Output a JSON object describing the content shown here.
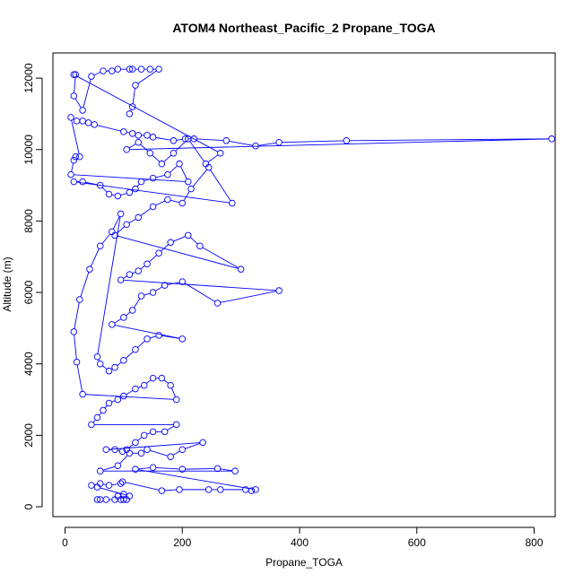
{
  "chart_data": {
    "type": "scatter",
    "title": "ATOM4 Northeast_Pacific_2 Propane_TOGA",
    "xlabel": "Propane_TOGA",
    "ylabel": "Altitude (m)",
    "xlim": [
      0,
      840
    ],
    "ylim": [
      0,
      12500
    ],
    "xticks": [
      0,
      200,
      400,
      600,
      800
    ],
    "yticks": [
      0,
      2000,
      4000,
      6000,
      8000,
      10000,
      12000
    ],
    "grid": false,
    "legend": "none",
    "series": [
      {
        "color": "#0000ff",
        "marker": "open-circle",
        "connected": true,
        "points": [
          [
            55,
            200
          ],
          [
            60,
            200
          ],
          [
            70,
            200
          ],
          [
            85,
            200
          ],
          [
            95,
            200
          ],
          [
            100,
            200
          ],
          [
            105,
            200
          ],
          [
            90,
            300
          ],
          [
            100,
            350
          ],
          [
            110,
            300
          ],
          [
            55,
            550
          ],
          [
            45,
            600
          ],
          [
            60,
            650
          ],
          [
            75,
            600
          ],
          [
            95,
            650
          ],
          [
            98,
            700
          ],
          [
            165,
            450
          ],
          [
            195,
            480
          ],
          [
            245,
            480
          ],
          [
            265,
            480
          ],
          [
            308,
            480
          ],
          [
            318,
            450
          ],
          [
            325,
            480
          ],
          [
            120,
            1050
          ],
          [
            150,
            1100
          ],
          [
            200,
            1050
          ],
          [
            260,
            1070
          ],
          [
            290,
            1000
          ],
          [
            60,
            1000
          ],
          [
            90,
            1150
          ],
          [
            110,
            1500
          ],
          [
            130,
            1500
          ],
          [
            140,
            1600
          ],
          [
            180,
            1400
          ],
          [
            200,
            1600
          ],
          [
            235,
            1800
          ],
          [
            70,
            1600
          ],
          [
            85,
            1600
          ],
          [
            98,
            1550
          ],
          [
            105,
            1600
          ],
          [
            120,
            1800
          ],
          [
            135,
            2000
          ],
          [
            150,
            2100
          ],
          [
            170,
            2100
          ],
          [
            190,
            2300
          ],
          [
            45,
            2300
          ],
          [
            55,
            2500
          ],
          [
            65,
            2700
          ],
          [
            75,
            2900
          ],
          [
            90,
            3000
          ],
          [
            100,
            3100
          ],
          [
            120,
            3300
          ],
          [
            135,
            3400
          ],
          [
            150,
            3600
          ],
          [
            165,
            3600
          ],
          [
            180,
            3400
          ],
          [
            190,
            3000
          ],
          [
            30,
            3150
          ],
          [
            20,
            4050
          ],
          [
            15,
            4900
          ],
          [
            25,
            5800
          ],
          [
            42,
            6650
          ],
          [
            60,
            7300
          ],
          [
            80,
            7700
          ],
          [
            95,
            8200
          ],
          [
            55,
            4200
          ],
          [
            60,
            4000
          ],
          [
            75,
            3800
          ],
          [
            85,
            3900
          ],
          [
            100,
            4100
          ],
          [
            120,
            4400
          ],
          [
            140,
            4700
          ],
          [
            160,
            4800
          ],
          [
            200,
            4700
          ],
          [
            80,
            5100
          ],
          [
            100,
            5300
          ],
          [
            115,
            5500
          ],
          [
            130,
            5900
          ],
          [
            150,
            6000
          ],
          [
            170,
            6200
          ],
          [
            200,
            6300
          ],
          [
            260,
            5700
          ],
          [
            365,
            6050
          ],
          [
            95,
            6350
          ],
          [
            110,
            6500
          ],
          [
            125,
            6600
          ],
          [
            140,
            6800
          ],
          [
            160,
            7100
          ],
          [
            180,
            7400
          ],
          [
            210,
            7600
          ],
          [
            230,
            7300
          ],
          [
            300,
            6650
          ],
          [
            85,
            7600
          ],
          [
            105,
            7900
          ],
          [
            125,
            8100
          ],
          [
            150,
            8400
          ],
          [
            175,
            8600
          ],
          [
            200,
            8500
          ],
          [
            215,
            8900
          ],
          [
            245,
            9500
          ],
          [
            285,
            8500
          ],
          [
            15,
            9100
          ],
          [
            30,
            9100
          ],
          [
            60,
            9000
          ],
          [
            75,
            8750
          ],
          [
            90,
            8700
          ],
          [
            110,
            8800
          ],
          [
            120,
            8900
          ],
          [
            130,
            9100
          ],
          [
            150,
            9200
          ],
          [
            175,
            9300
          ],
          [
            195,
            9600
          ],
          [
            210,
            9100
          ],
          [
            10,
            9300
          ],
          [
            15,
            9700
          ],
          [
            18,
            9800
          ],
          [
            25,
            9800
          ],
          [
            10,
            10900
          ],
          [
            20,
            10800
          ],
          [
            30,
            10800
          ],
          [
            40,
            10750
          ],
          [
            50,
            10700
          ],
          [
            100,
            10500
          ],
          [
            115,
            10450
          ],
          [
            125,
            10400
          ],
          [
            140,
            10400
          ],
          [
            150,
            10350
          ],
          [
            185,
            10250
          ],
          [
            205,
            10300
          ],
          [
            220,
            10300
          ],
          [
            275,
            10250
          ],
          [
            325,
            10100
          ],
          [
            365,
            10200
          ],
          [
            480,
            10250
          ],
          [
            830,
            10300
          ],
          [
            105,
            10000
          ],
          [
            125,
            10200
          ],
          [
            145,
            9900
          ],
          [
            165,
            9600
          ],
          [
            185,
            9900
          ],
          [
            210,
            10300
          ],
          [
            240,
            9600
          ],
          [
            265,
            9900
          ],
          [
            15,
            12100
          ],
          [
            18,
            12100
          ],
          [
            15,
            11500
          ],
          [
            30,
            11100
          ],
          [
            45,
            12050
          ],
          [
            65,
            12200
          ],
          [
            80,
            12200
          ],
          [
            90,
            12250
          ],
          [
            110,
            12250
          ],
          [
            115,
            12250
          ],
          [
            130,
            12250
          ],
          [
            145,
            12250
          ],
          [
            160,
            12250
          ],
          [
            120,
            11800
          ],
          [
            115,
            11200
          ],
          [
            110,
            11000
          ]
        ]
      }
    ]
  }
}
